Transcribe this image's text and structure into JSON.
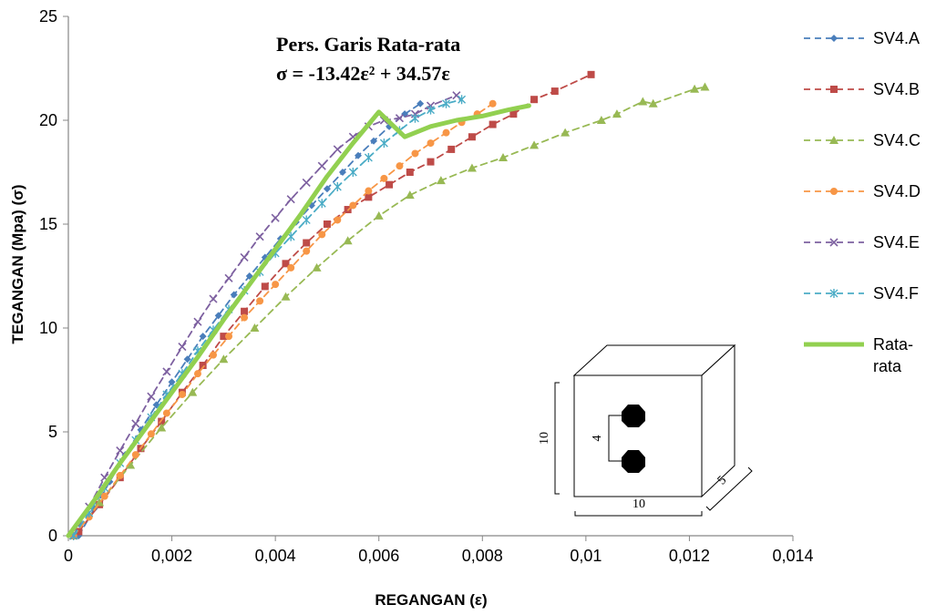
{
  "chart_data": {
    "type": "line",
    "xlabel": "REGANGAN (ε)",
    "ylabel": "TEGANGAN (Mpa) (σ)",
    "xlim": [
      0,
      0.014
    ],
    "ylim": [
      0,
      25
    ],
    "x_ticks": [
      "0",
      "0,002",
      "0,004",
      "0,006",
      "0,008",
      "0,01",
      "0,012",
      "0,014"
    ],
    "y_ticks": [
      "0",
      "5",
      "10",
      "15",
      "20",
      "25"
    ],
    "grid": false,
    "legend_position": "right",
    "annotation": {
      "line1": "Pers. Garis Rata-rata",
      "line2": "σ = -13.42ε² + 34.57ε"
    },
    "inset_labels": {
      "height": "10",
      "spacing": "4",
      "width": "10",
      "depth": "5"
    },
    "series": [
      {
        "name": "SV4.A",
        "color": "#4A7EBB",
        "marker": "diamond",
        "dash": true,
        "x": [
          0.0002,
          0.0005,
          0.0008,
          0.0011,
          0.0014,
          0.0017,
          0.002,
          0.0023,
          0.0026,
          0.0029,
          0.0032,
          0.0035,
          0.0038,
          0.0041,
          0.0044,
          0.0047,
          0.005,
          0.0053,
          0.0056,
          0.0059,
          0.0062,
          0.0065,
          0.0068
        ],
        "y": [
          0,
          1.3,
          2.6,
          3.9,
          5.1,
          6.3,
          7.4,
          8.5,
          9.6,
          10.6,
          11.6,
          12.5,
          13.4,
          14.3,
          15.1,
          15.9,
          16.7,
          17.5,
          18.3,
          19.0,
          19.7,
          20.3,
          20.8
        ]
      },
      {
        "name": "SV4.B",
        "color": "#BE4B48",
        "marker": "square",
        "dash": true,
        "x": [
          0.0002,
          0.0006,
          0.001,
          0.0014,
          0.0018,
          0.0022,
          0.0026,
          0.003,
          0.0034,
          0.0038,
          0.0042,
          0.0046,
          0.005,
          0.0054,
          0.0058,
          0.0062,
          0.0066,
          0.007,
          0.0074,
          0.0078,
          0.0082,
          0.0086,
          0.009,
          0.0094,
          0.0101
        ],
        "y": [
          0.2,
          1.5,
          2.8,
          4.2,
          5.5,
          6.9,
          8.2,
          9.6,
          10.8,
          12.0,
          13.1,
          14.1,
          15.0,
          15.7,
          16.3,
          16.9,
          17.5,
          18.0,
          18.6,
          19.2,
          19.8,
          20.3,
          21.0,
          21.4,
          22.2
        ]
      },
      {
        "name": "SV4.C",
        "color": "#98B954",
        "marker": "triangle",
        "dash": true,
        "x": [
          0.0001,
          0.0006,
          0.0012,
          0.0018,
          0.0024,
          0.003,
          0.0036,
          0.0042,
          0.0048,
          0.0054,
          0.006,
          0.0066,
          0.0072,
          0.0078,
          0.0084,
          0.009,
          0.0096,
          0.0103,
          0.0106,
          0.0111,
          0.0113,
          0.0121,
          0.0123
        ],
        "y": [
          0,
          1.6,
          3.4,
          5.2,
          6.9,
          8.5,
          10.0,
          11.5,
          12.9,
          14.2,
          15.4,
          16.4,
          17.1,
          17.7,
          18.2,
          18.8,
          19.4,
          20.0,
          20.3,
          20.9,
          20.8,
          21.5,
          21.6
        ]
      },
      {
        "name": "SV4.D",
        "color": "#F79646",
        "marker": "circle",
        "dash": true,
        "x": [
          0.0001,
          0.0004,
          0.0007,
          0.001,
          0.0013,
          0.0016,
          0.0019,
          0.0022,
          0.0025,
          0.0028,
          0.0031,
          0.0034,
          0.0037,
          0.004,
          0.0043,
          0.0046,
          0.0049,
          0.0052,
          0.0055,
          0.0058,
          0.0061,
          0.0064,
          0.0067,
          0.007,
          0.0073,
          0.0076,
          0.0079,
          0.0082
        ],
        "y": [
          0,
          0.9,
          1.9,
          2.9,
          3.9,
          4.9,
          5.9,
          6.8,
          7.8,
          8.7,
          9.6,
          10.5,
          11.3,
          12.1,
          12.9,
          13.7,
          14.5,
          15.2,
          15.9,
          16.6,
          17.2,
          17.8,
          18.4,
          18.9,
          19.4,
          19.9,
          20.3,
          20.8
        ]
      },
      {
        "name": "SV4.E",
        "color": "#7D60A0",
        "marker": "x",
        "dash": true,
        "x": [
          0.0001,
          0.0004,
          0.0007,
          0.001,
          0.0013,
          0.0016,
          0.0019,
          0.0022,
          0.0025,
          0.0028,
          0.0031,
          0.0034,
          0.0037,
          0.004,
          0.0043,
          0.0046,
          0.0049,
          0.0052,
          0.0055,
          0.0058,
          0.0061,
          0.0064,
          0.0067,
          0.007,
          0.0075
        ],
        "y": [
          0,
          1.4,
          2.8,
          4.1,
          5.4,
          6.7,
          7.9,
          9.1,
          10.3,
          11.4,
          12.4,
          13.4,
          14.4,
          15.3,
          16.2,
          17.0,
          17.8,
          18.6,
          19.2,
          19.7,
          20.0,
          20.1,
          20.3,
          20.7,
          21.2
        ]
      },
      {
        "name": "SV4.F",
        "color": "#4BACC6",
        "marker": "star",
        "dash": true,
        "x": [
          0.0001,
          0.0004,
          0.0007,
          0.001,
          0.0013,
          0.0016,
          0.0019,
          0.0022,
          0.0025,
          0.0028,
          0.0031,
          0.0034,
          0.0037,
          0.004,
          0.0043,
          0.0046,
          0.0049,
          0.0052,
          0.0055,
          0.0058,
          0.0061,
          0.0064,
          0.0067,
          0.007,
          0.0073,
          0.0076
        ],
        "y": [
          0,
          1.1,
          2.3,
          3.5,
          4.6,
          5.7,
          6.8,
          7.8,
          8.9,
          9.9,
          10.9,
          11.8,
          12.7,
          13.6,
          14.4,
          15.2,
          16.0,
          16.8,
          17.5,
          18.2,
          18.9,
          19.5,
          20.1,
          20.5,
          20.8,
          21.0
        ]
      },
      {
        "name": "Rata-rata",
        "color": "#92D050",
        "marker": "none",
        "dash": false,
        "bold": true,
        "x": [
          0,
          0.0005,
          0.001,
          0.0015,
          0.002,
          0.0025,
          0.003,
          0.0035,
          0.004,
          0.0045,
          0.005,
          0.0055,
          0.006,
          0.0065,
          0.007,
          0.0075,
          0.008,
          0.0085,
          0.0089
        ],
        "y": [
          0,
          1.7,
          3.5,
          5.2,
          6.9,
          8.6,
          10.4,
          12.1,
          13.8,
          15.5,
          17.3,
          18.9,
          20.4,
          19.2,
          19.7,
          20.0,
          20.2,
          20.5,
          20.7
        ]
      }
    ]
  }
}
